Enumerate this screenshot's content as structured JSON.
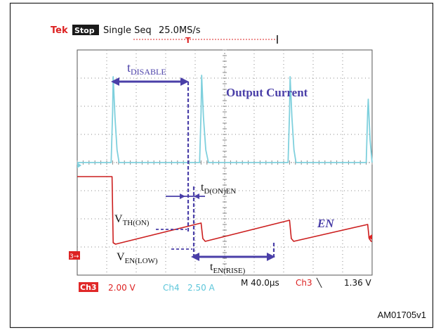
{
  "scope": {
    "header": {
      "brand": "Tek",
      "state": "Stop",
      "mode": "Single Seq",
      "rate": "25.0MS/s",
      "trigger_marker": "T"
    },
    "footer": {
      "ch3_tag": "Ch3",
      "ch3_scale": "2.00 V",
      "ch4_tag": "Ch4",
      "ch4_scale": "2.50 A",
      "timebase": "M 40.0µs",
      "trig_source": "Ch3",
      "trig_slope": "╲",
      "trig_level": "1.36 V"
    },
    "ch3_marker": "3→",
    "figure_id": "AM01705v1"
  },
  "colors": {
    "grid": "#8a8a8a",
    "current": "#7fd0dd",
    "en": "#cc1f1f",
    "annotation": "#4a3fa8",
    "tag_bg": "#e02828",
    "ch4_text": "#5cc6da"
  },
  "chart_data": {
    "type": "line",
    "title": "",
    "x_unit": "divisions",
    "y_unit": "divisions",
    "xlim": [
      0,
      10
    ],
    "ylim": [
      -4,
      4
    ],
    "grid": true,
    "series": [
      {
        "name": "Output Current",
        "color": "#7fd0dd",
        "x": [
          0,
          1.15,
          1.2,
          1.22,
          1.28,
          1.35,
          1.42,
          4.15,
          4.2,
          4.22,
          4.28,
          4.36,
          4.45,
          7.15,
          7.2,
          7.22,
          7.28,
          7.35,
          7.42,
          9.8,
          9.85,
          9.87,
          9.93,
          10
        ],
        "y": [
          0.0,
          0.0,
          1.8,
          3.05,
          1.6,
          0.45,
          0.0,
          0.0,
          1.8,
          3.1,
          1.6,
          0.45,
          0.0,
          0.0,
          1.8,
          3.05,
          1.6,
          0.45,
          0.0,
          0.0,
          1.8,
          2.25,
          0.8,
          0.0
        ]
      },
      {
        "name": "EN",
        "color": "#cc1f1f",
        "x": [
          0,
          1.18,
          1.22,
          1.3,
          4.2,
          4.26,
          4.34,
          7.2,
          7.26,
          7.34,
          9.85,
          9.9,
          9.97,
          10
        ],
        "y": [
          -0.5,
          -0.5,
          -2.85,
          -2.9,
          -2.15,
          -2.7,
          -2.8,
          -2.05,
          -2.7,
          -2.8,
          -2.2,
          -2.7,
          -2.8,
          -2.8
        ]
      }
    ],
    "annotations": [
      {
        "label": "t",
        "subscript": "DISABLE"
      },
      {
        "label": "Output Current"
      },
      {
        "label": "t",
        "subscript": "D(ON)EN"
      },
      {
        "label": "V",
        "subscript": "TH(ON)"
      },
      {
        "label": "V",
        "subscript": "EN(LOW)"
      },
      {
        "label": "t",
        "subscript": "EN(RISE)"
      },
      {
        "label": "EN"
      }
    ]
  }
}
